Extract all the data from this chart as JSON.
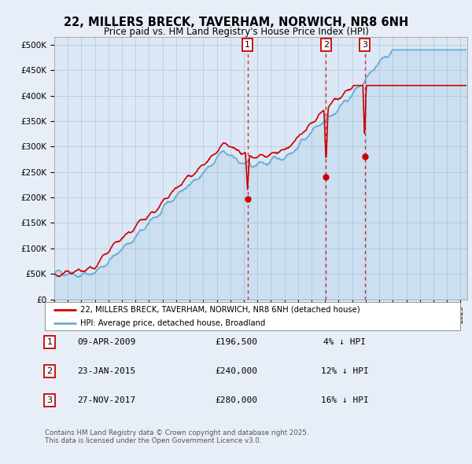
{
  "title_line1": "22, MILLERS BRECK, TAVERHAM, NORWICH, NR8 6NH",
  "title_line2": "Price paid vs. HM Land Registry's House Price Index (HPI)",
  "ylabel_ticks": [
    "£0",
    "£50K",
    "£100K",
    "£150K",
    "£200K",
    "£250K",
    "£300K",
    "£350K",
    "£400K",
    "£450K",
    "£500K"
  ],
  "ytick_values": [
    0,
    50000,
    100000,
    150000,
    200000,
    250000,
    300000,
    350000,
    400000,
    450000,
    500000
  ],
  "ylim": [
    0,
    515000
  ],
  "xlim_start": 1995.0,
  "xlim_end": 2025.5,
  "hpi_color": "#6aaed6",
  "price_color": "#cc0000",
  "purchases": [
    {
      "year": 2009.27,
      "price": 196500,
      "label": "1"
    },
    {
      "year": 2015.07,
      "price": 240000,
      "label": "2"
    },
    {
      "year": 2017.92,
      "price": 280000,
      "label": "3"
    }
  ],
  "legend_line1": "22, MILLERS BRECK, TAVERHAM, NORWICH, NR8 6NH (detached house)",
  "legend_line2": "HPI: Average price, detached house, Broadland",
  "table_rows": [
    {
      "num": "1",
      "date": "09-APR-2009",
      "price": "£196,500",
      "pct": "4% ↓ HPI"
    },
    {
      "num": "2",
      "date": "23-JAN-2015",
      "price": "£240,000",
      "pct": "12% ↓ HPI"
    },
    {
      "num": "3",
      "date": "27-NOV-2017",
      "price": "£280,000",
      "pct": "16% ↓ HPI"
    }
  ],
  "footer": "Contains HM Land Registry data © Crown copyright and database right 2025.\nThis data is licensed under the Open Government Licence v3.0.",
  "bg_color": "#e8eef8",
  "plot_bg_color": "#dce8f5",
  "grid_color": "#bbccdd",
  "legend_bg": "#ffffff"
}
